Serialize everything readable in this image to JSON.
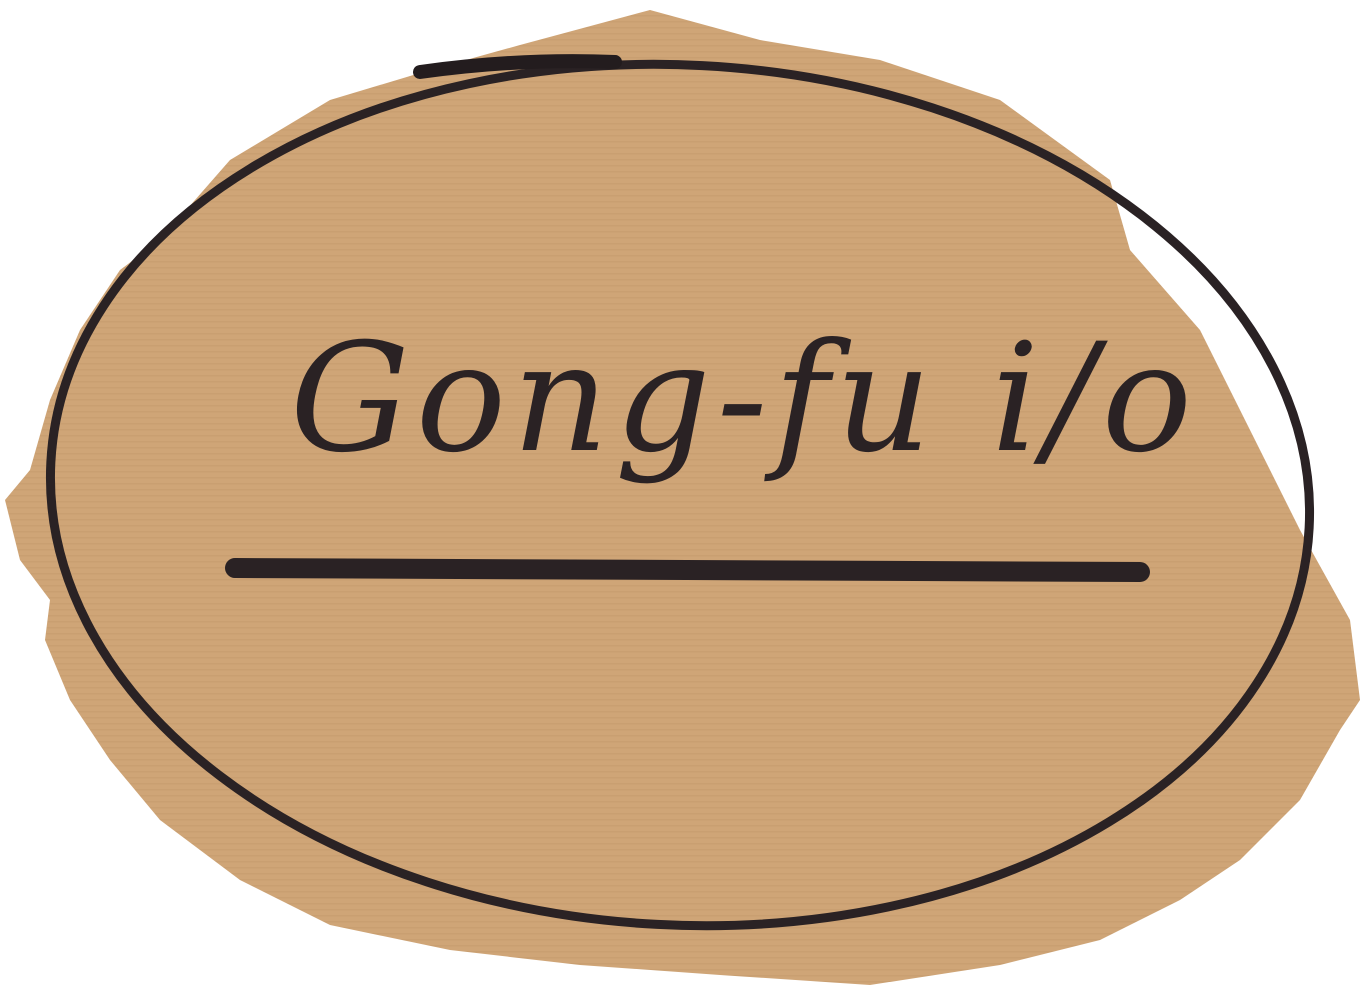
{
  "title": "Gong-fu i/o"
}
